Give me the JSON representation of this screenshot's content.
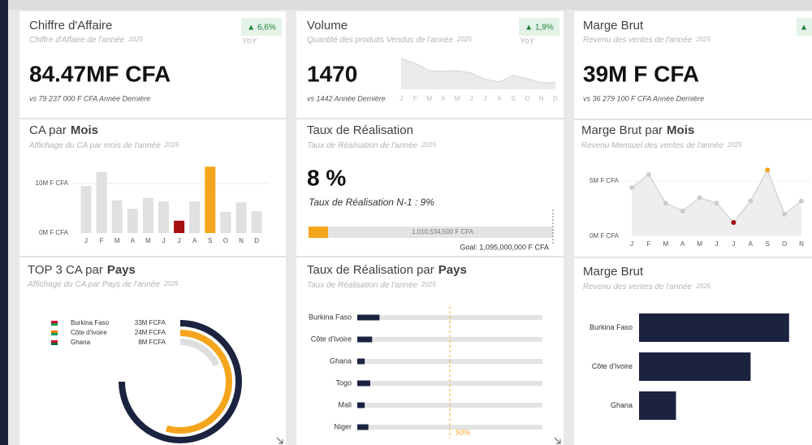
{
  "kpis": [
    {
      "title": "Chiffre d'Affaire",
      "subtitle": "Chiffre d'Affaire de l'année",
      "year": "2025",
      "badge": "▲ 6,6%",
      "badge_caption": "YoY",
      "value": "84.47MF CFA",
      "note": "vs 79 237 000 F CFA Année Dernière"
    },
    {
      "title": "Volume",
      "subtitle": "Quantité des produits Vendus de l'année",
      "year": "2025",
      "badge": "▲ 1,9%",
      "badge_caption": "YoY",
      "value": "1470",
      "note": "vs 1442 Année Dernière"
    },
    {
      "title": "Marge Brut",
      "subtitle": "Revenu des ventes de l'année",
      "year": "2025",
      "badge": "▲",
      "value": "39M F CFA",
      "note": "vs 36 279 100 F CFA Année Dernière"
    }
  ],
  "volume_trend": {
    "type": "area",
    "categories": [
      "J",
      "F",
      "M",
      "A",
      "M",
      "J",
      "J",
      "A",
      "S",
      "O",
      "N",
      "D"
    ],
    "values": [
      84,
      71,
      51,
      49,
      51,
      44,
      27,
      20,
      38,
      29,
      18,
      18
    ],
    "ylim": [
      0,
      100
    ],
    "color": "#ebebeb"
  },
  "ca_by_month": {
    "type": "bar",
    "title": "CA par",
    "title_emphasis": "Mois",
    "subtitle": "Affichage du CA par mois de l'année",
    "year": "2025",
    "categories": [
      "J",
      "F",
      "M",
      "A",
      "M",
      "J",
      "J",
      "A",
      "S",
      "O",
      "N",
      "D"
    ],
    "values": [
      9500000,
      12300000,
      6600000,
      4900000,
      7100000,
      6400000,
      2500000,
      6400000,
      13400000,
      4300000,
      6200000,
      4400000
    ],
    "colors": [
      "#e0e0e0",
      "#e0e0e0",
      "#e0e0e0",
      "#e0e0e0",
      "#e0e0e0",
      "#e0e0e0",
      "#a50f0f",
      "#e0e0e0",
      "#f5a51c",
      "#e0e0e0",
      "#e0e0e0",
      "#e0e0e0"
    ],
    "ylim": [
      0,
      14000000
    ],
    "yticks": [
      {
        "value": 0,
        "label": "0M F CFA"
      },
      {
        "value": 10000000,
        "label": "10M F CFA"
      }
    ],
    "grid": true
  },
  "realisation": {
    "type": "progress",
    "title": "Taux de Réalisation",
    "subtitle": "Taux de Réalisation de l'année",
    "year": "2025",
    "value": 8,
    "value_label": "8 %",
    "previous": "Taux de Réalisation N-1 : 9%",
    "bar_label": "1,010,534,500 F CFA",
    "goal": "Goal: 1,095,000,000 F CFA",
    "xlim": [
      0,
      100
    ],
    "color": "#f5a51c"
  },
  "margin_by_month": {
    "type": "line",
    "title": "Marge Brut par",
    "title_emphasis": "Mois",
    "subtitle": "Revenu Mensuel des ventes de l'année",
    "year": "2025",
    "categories": [
      "J",
      "F",
      "M",
      "A",
      "M",
      "J",
      "J",
      "A",
      "S",
      "O",
      "N"
    ],
    "values": [
      4400000,
      5600000,
      3000000,
      2300000,
      3500000,
      3000000,
      1250000,
      3200000,
      6000000,
      2000000,
      3200000
    ],
    "colors": [
      "#cccccc",
      "#cccccc",
      "#cccccc",
      "#cccccc",
      "#cccccc",
      "#cccccc",
      "#a50f0f",
      "#cccccc",
      "#f5a51c",
      "#cccccc",
      "#cccccc"
    ],
    "ylim": [
      0,
      7000000
    ],
    "yticks": [
      {
        "value": 0,
        "label": "0M F CFA"
      },
      {
        "value": 5000000,
        "label": "5M F CFA"
      }
    ],
    "grid": true
  },
  "top3": {
    "type": "radial_bar",
    "title": "TOP 3 CA par",
    "title_emphasis": "Pays",
    "subtitle": "Affichage du CA par Pays de l'année",
    "year": "2025",
    "categories": [
      "Burkina Faso",
      "Côte d'Ivoire",
      "Ghana"
    ],
    "values": [
      33000000,
      24000000,
      8000000
    ],
    "value_labels": [
      "33M FCFA",
      "24M FCFA",
      "8M FCFA"
    ],
    "colors": [
      "#1b2340",
      "#f5a51c",
      "#dedede"
    ],
    "rlim": [
      0,
      44000000
    ]
  },
  "realisation_by_country": {
    "type": "bar_h",
    "title": "Taux de Réalisation par",
    "title_emphasis": "Pays",
    "subtitle": "Taux de Réalisation de l'année",
    "year": "2025",
    "categories": [
      "Burkina Faso",
      "Côte d'Ivoire",
      "Ghana",
      "Togo",
      "Mali",
      "Niger"
    ],
    "values": [
      12,
      8,
      4,
      7,
      4,
      6
    ],
    "xlim": [
      0,
      100
    ],
    "color": "#1b2340",
    "target": {
      "value": 50,
      "label": "50%"
    }
  },
  "margin_by_country": {
    "type": "bar_h",
    "title": "Marge Brut",
    "subtitle": "Revenu des ventes de l'année",
    "year": "2025",
    "categories": [
      "Burkina Faso",
      "Côte d'Ivoire",
      "Ghana"
    ],
    "values": [
      19500000,
      14500000,
      4800000
    ],
    "xlim": [
      0,
      21000000
    ],
    "color": "#1b2340"
  }
}
